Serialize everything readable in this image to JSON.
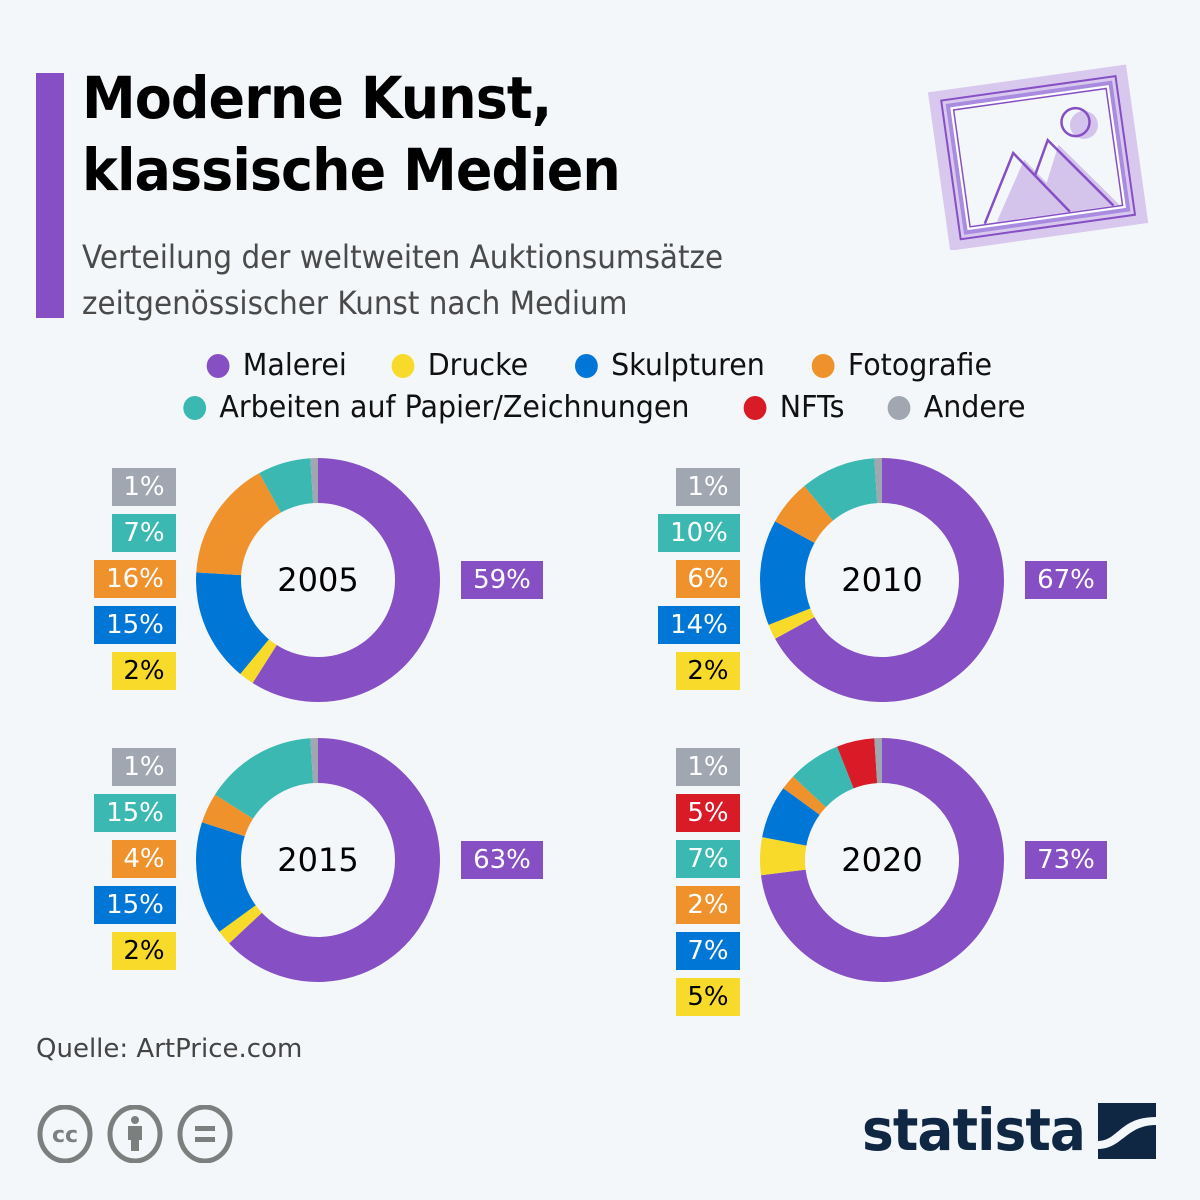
{
  "header": {
    "title_line1": "Moderne Kunst,",
    "title_line2": "klassische Medien",
    "subtitle_line1": "Verteilung der weltweiten Auktionsumsätze",
    "subtitle_line2": "zeitgenössischer Kunst nach Medium",
    "accent_color": "#8650c4",
    "illustration_icon": "framed-picture-icon"
  },
  "legend": {
    "row1": [
      {
        "label": "Malerei",
        "color": "#8650c4"
      },
      {
        "label": "Drucke",
        "color": "#f7da2a"
      },
      {
        "label": "Skulpturen",
        "color": "#0077d6"
      },
      {
        "label": "Fotografie",
        "color": "#f0922c"
      }
    ],
    "row2": [
      {
        "label": "Arbeiten auf Papier/Zeichnungen",
        "color": "#3bb8b2"
      },
      {
        "label": "NFTs",
        "color": "#d91a27"
      },
      {
        "label": "Andere",
        "color": "#a0a7b0"
      }
    ]
  },
  "chart_data": [
    {
      "type": "pie",
      "variant": "donut",
      "title": "2005",
      "categories": [
        "Malerei",
        "Drucke",
        "Skulpturen",
        "Fotografie",
        "Arbeiten auf Papier/Zeichnungen",
        "Andere"
      ],
      "values": [
        59,
        2,
        15,
        16,
        7,
        1
      ],
      "labels": [
        "59%",
        "2%",
        "15%",
        "16%",
        "7%",
        "1%"
      ],
      "colors": [
        "#8650c4",
        "#f7da2a",
        "#0077d6",
        "#f0922c",
        "#3bb8b2",
        "#a0a7b0"
      ],
      "unit": "%"
    },
    {
      "type": "pie",
      "variant": "donut",
      "title": "2010",
      "categories": [
        "Malerei",
        "Drucke",
        "Skulpturen",
        "Fotografie",
        "Arbeiten auf Papier/Zeichnungen",
        "Andere"
      ],
      "values": [
        67,
        2,
        14,
        6,
        10,
        1
      ],
      "labels": [
        "67%",
        "2%",
        "14%",
        "6%",
        "10%",
        "1%"
      ],
      "colors": [
        "#8650c4",
        "#f7da2a",
        "#0077d6",
        "#f0922c",
        "#3bb8b2",
        "#a0a7b0"
      ],
      "unit": "%"
    },
    {
      "type": "pie",
      "variant": "donut",
      "title": "2015",
      "categories": [
        "Malerei",
        "Drucke",
        "Skulpturen",
        "Fotografie",
        "Arbeiten auf Papier/Zeichnungen",
        "Andere"
      ],
      "values": [
        63,
        2,
        15,
        4,
        15,
        1
      ],
      "labels": [
        "63%",
        "2%",
        "15%",
        "4%",
        "15%",
        "1%"
      ],
      "colors": [
        "#8650c4",
        "#f7da2a",
        "#0077d6",
        "#f0922c",
        "#3bb8b2",
        "#a0a7b0"
      ],
      "unit": "%"
    },
    {
      "type": "pie",
      "variant": "donut",
      "title": "2020",
      "categories": [
        "Malerei",
        "Drucke",
        "Skulpturen",
        "Fotografie",
        "Arbeiten auf Papier/Zeichnungen",
        "NFTs",
        "Andere"
      ],
      "values": [
        73,
        5,
        7,
        2,
        7,
        5,
        1
      ],
      "labels": [
        "73%",
        "5%",
        "7%",
        "2%",
        "7%",
        "5%",
        "1%"
      ],
      "colors": [
        "#8650c4",
        "#f7da2a",
        "#0077d6",
        "#f0922c",
        "#3bb8b2",
        "#d91a27",
        "#a0a7b0"
      ],
      "unit": "%"
    }
  ],
  "footer": {
    "source": "Quelle: ArtPrice.com",
    "license_icons": [
      "creative-commons-icon",
      "attribution-icon",
      "no-derivatives-icon"
    ],
    "brand": "statista",
    "brand_color": "#0f2742"
  }
}
